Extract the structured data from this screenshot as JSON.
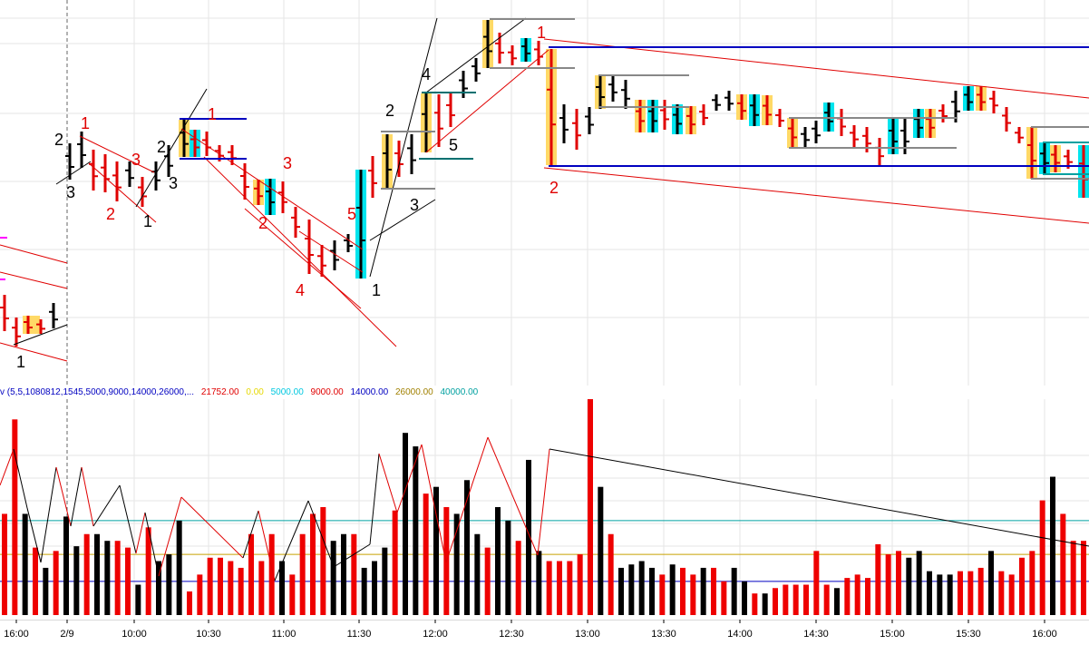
{
  "chart_data": {
    "type": "bar",
    "panels": [
      {
        "name": "price",
        "chart_kind": "ohlc",
        "wave_labels": [
          {
            "text": "1",
            "color": "#000000"
          },
          {
            "text": "2",
            "color": "#000000"
          },
          {
            "text": "3",
            "color": "#000000"
          },
          {
            "text": "1",
            "color": "#e00000"
          },
          {
            "text": "2",
            "color": "#e00000"
          },
          {
            "text": "3",
            "color": "#e00000"
          },
          {
            "text": "2",
            "color": "#000000"
          },
          {
            "text": "3",
            "color": "#000000"
          },
          {
            "text": "1",
            "color": "#000000"
          },
          {
            "text": "1",
            "color": "#e00000"
          },
          {
            "text": "2",
            "color": "#e00000"
          },
          {
            "text": "3",
            "color": "#e00000"
          },
          {
            "text": "4",
            "color": "#e00000"
          },
          {
            "text": "5",
            "color": "#e00000"
          },
          {
            "text": "1",
            "color": "#000000"
          },
          {
            "text": "2",
            "color": "#000000"
          },
          {
            "text": "3",
            "color": "#000000"
          },
          {
            "text": "4",
            "color": "#000000"
          },
          {
            "text": "5",
            "color": "#000000"
          },
          {
            "text": "1",
            "color": "#e00000"
          },
          {
            "text": "2",
            "color": "#e00000"
          }
        ]
      },
      {
        "name": "volume",
        "indicator_label": "v (5,5,1080812,1545,5000,9000,14000,26000,...",
        "indicator_values": [
          {
            "text": "21752.00",
            "color": "#e00000"
          },
          {
            "text": "0.00",
            "color": "#e6d800"
          },
          {
            "text": "5000.00",
            "color": "#00c8e0"
          },
          {
            "text": "9000.00",
            "color": "#e00000"
          },
          {
            "text": "14000.00",
            "color": "#0000c0"
          },
          {
            "text": "26000.00",
            "color": "#a08000"
          },
          {
            "text": "40000.00",
            "color": "#00a0a0"
          }
        ],
        "threshold_lines": [
          {
            "value": 5000,
            "color": "#0000c0"
          },
          {
            "value": 9000,
            "color": "#c8a000"
          },
          {
            "value": 14000,
            "color": "#00a0a0"
          }
        ],
        "ylim": [
          0,
          40000
        ]
      }
    ],
    "x_tick_labels": [
      "16:00",
      "2/9",
      "10:00",
      "10:30",
      "11:00",
      "11:30",
      "12:00",
      "12:30",
      "13:00",
      "13:30",
      "14:00",
      "14:30",
      "15:00",
      "15:30",
      "16:00"
    ],
    "volume_bars": [
      {
        "v": 15000,
        "c": "red"
      },
      {
        "v": 29000,
        "c": "red"
      },
      {
        "v": 15000,
        "c": "black"
      },
      {
        "v": 10000,
        "c": "red"
      },
      {
        "v": 7000,
        "c": "black"
      },
      {
        "v": 9500,
        "c": "red"
      },
      {
        "v": 14600,
        "c": "black"
      },
      {
        "v": 10200,
        "c": "black"
      },
      {
        "v": 12000,
        "c": "red"
      },
      {
        "v": 12000,
        "c": "black"
      },
      {
        "v": 11000,
        "c": "black"
      },
      {
        "v": 11000,
        "c": "red"
      },
      {
        "v": 10000,
        "c": "red"
      },
      {
        "v": 4500,
        "c": "black"
      },
      {
        "v": 13000,
        "c": "red"
      },
      {
        "v": 8000,
        "c": "black"
      },
      {
        "v": 9000,
        "c": "black"
      },
      {
        "v": 14000,
        "c": "black"
      },
      {
        "v": 3500,
        "c": "red"
      },
      {
        "v": 6000,
        "c": "red"
      },
      {
        "v": 8500,
        "c": "red"
      },
      {
        "v": 8500,
        "c": "red"
      },
      {
        "v": 8000,
        "c": "red"
      },
      {
        "v": 7000,
        "c": "red"
      },
      {
        "v": 12000,
        "c": "red"
      },
      {
        "v": 8000,
        "c": "red"
      },
      {
        "v": 12000,
        "c": "red"
      },
      {
        "v": 8000,
        "c": "black"
      },
      {
        "v": 6000,
        "c": "red"
      },
      {
        "v": 12000,
        "c": "red"
      },
      {
        "v": 15000,
        "c": "red"
      },
      {
        "v": 16000,
        "c": "red"
      },
      {
        "v": 11000,
        "c": "black"
      },
      {
        "v": 12000,
        "c": "black"
      },
      {
        "v": 12000,
        "c": "red"
      },
      {
        "v": 7000,
        "c": "black"
      },
      {
        "v": 8000,
        "c": "black"
      },
      {
        "v": 10000,
        "c": "black"
      },
      {
        "v": 15500,
        "c": "red"
      },
      {
        "v": 27000,
        "c": "black"
      },
      {
        "v": 25000,
        "c": "black"
      },
      {
        "v": 18000,
        "c": "red"
      },
      {
        "v": 19000,
        "c": "black"
      },
      {
        "v": 16000,
        "c": "red"
      },
      {
        "v": 15000,
        "c": "black"
      },
      {
        "v": 20000,
        "c": "black"
      },
      {
        "v": 12000,
        "c": "black"
      },
      {
        "v": 10000,
        "c": "red"
      },
      {
        "v": 16000,
        "c": "black"
      },
      {
        "v": 14000,
        "c": "black"
      },
      {
        "v": 11000,
        "c": "red"
      },
      {
        "v": 23000,
        "c": "black"
      },
      {
        "v": 9500,
        "c": "black"
      },
      {
        "v": 8000,
        "c": "red"
      },
      {
        "v": 8000,
        "c": "red"
      },
      {
        "v": 8000,
        "c": "red"
      },
      {
        "v": 9000,
        "c": "red"
      },
      {
        "v": 32000,
        "c": "red"
      },
      {
        "v": 19000,
        "c": "black"
      },
      {
        "v": 12000,
        "c": "red"
      },
      {
        "v": 7000,
        "c": "black"
      },
      {
        "v": 7500,
        "c": "black"
      },
      {
        "v": 8000,
        "c": "black"
      },
      {
        "v": 7000,
        "c": "black"
      },
      {
        "v": 6000,
        "c": "red"
      },
      {
        "v": 7500,
        "c": "black"
      },
      {
        "v": 7000,
        "c": "red"
      },
      {
        "v": 6000,
        "c": "red"
      },
      {
        "v": 7000,
        "c": "black"
      },
      {
        "v": 7000,
        "c": "red"
      },
      {
        "v": 5000,
        "c": "red"
      },
      {
        "v": 7000,
        "c": "black"
      },
      {
        "v": 5000,
        "c": "black"
      },
      {
        "v": 3200,
        "c": "red"
      },
      {
        "v": 3200,
        "c": "black"
      },
      {
        "v": 4000,
        "c": "red"
      },
      {
        "v": 4500,
        "c": "red"
      },
      {
        "v": 4500,
        "c": "red"
      },
      {
        "v": 4500,
        "c": "red"
      },
      {
        "v": 9500,
        "c": "red"
      },
      {
        "v": 4500,
        "c": "red"
      },
      {
        "v": 4000,
        "c": "black"
      },
      {
        "v": 5500,
        "c": "red"
      },
      {
        "v": 6000,
        "c": "red"
      },
      {
        "v": 5500,
        "c": "red"
      },
      {
        "v": 10500,
        "c": "red"
      },
      {
        "v": 9000,
        "c": "red"
      },
      {
        "v": 9500,
        "c": "red"
      },
      {
        "v": 8500,
        "c": "black"
      },
      {
        "v": 9500,
        "c": "black"
      },
      {
        "v": 6500,
        "c": "black"
      },
      {
        "v": 6000,
        "c": "black"
      },
      {
        "v": 6000,
        "c": "black"
      },
      {
        "v": 6500,
        "c": "red"
      },
      {
        "v": 6500,
        "c": "red"
      },
      {
        "v": 7000,
        "c": "red"
      },
      {
        "v": 9500,
        "c": "black"
      },
      {
        "v": 6500,
        "c": "red"
      },
      {
        "v": 6000,
        "c": "red"
      },
      {
        "v": 8500,
        "c": "red"
      },
      {
        "v": 9500,
        "c": "red"
      },
      {
        "v": 17000,
        "c": "red"
      },
      {
        "v": 20500,
        "c": "black"
      },
      {
        "v": 15000,
        "c": "red"
      },
      {
        "v": 11000,
        "c": "red"
      },
      {
        "v": 11000,
        "c": "red"
      }
    ]
  }
}
